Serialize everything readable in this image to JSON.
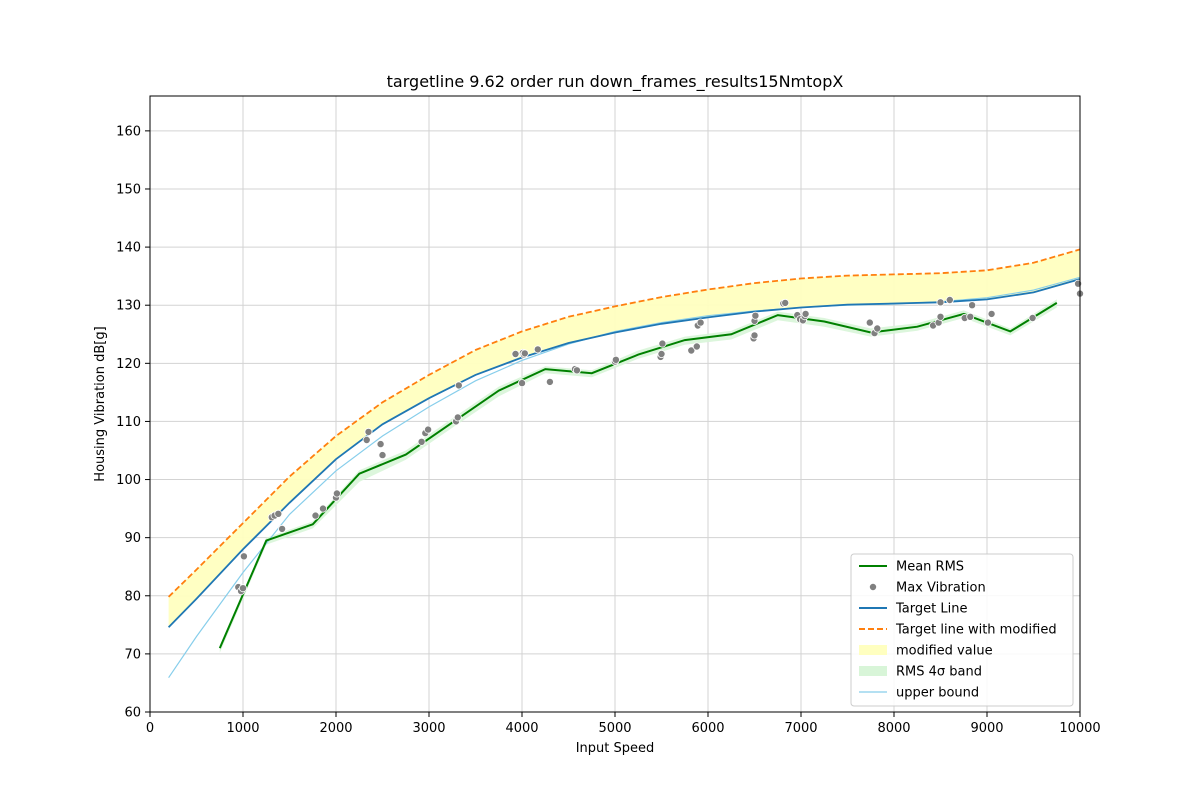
{
  "chart_data": {
    "type": "line",
    "title": "targetline 9.62 order run down_frames_results15NmtopX",
    "xlabel": "Input Speed",
    "ylabel": "Housing Vibration dB[g]",
    "xlim": [
      0,
      10000
    ],
    "ylim": [
      60,
      166
    ],
    "xticks": [
      0,
      1000,
      2000,
      3000,
      4000,
      5000,
      6000,
      7000,
      8000,
      9000,
      10000
    ],
    "yticks": [
      60,
      70,
      80,
      90,
      100,
      110,
      120,
      130,
      140,
      150,
      160
    ],
    "grid": true,
    "legend_position": "lower right",
    "colors": {
      "mean_rms": "#008000",
      "max_vibration": "#808080",
      "target_line": "#1f77b4",
      "target_modified": "#ff7f0e",
      "modified_band": "#ffffc0",
      "rms_band": "#d8f5d8",
      "upper_bound": "#87ceeb"
    },
    "legend": [
      {
        "key": "mean_rms",
        "label": "Mean RMS",
        "style": "line"
      },
      {
        "key": "max_vibration",
        "label": "Max Vibration",
        "style": "marker"
      },
      {
        "key": "target_line",
        "label": "Target Line",
        "style": "line"
      },
      {
        "key": "target_modified",
        "label": "Target line with modified",
        "style": "dashed"
      },
      {
        "key": "modified_band",
        "label": "modified value",
        "style": "patch"
      },
      {
        "key": "rms_band",
        "label": "RMS 4σ band",
        "style": "patch"
      },
      {
        "key": "upper_bound",
        "label": "upper bound",
        "style": "thin"
      }
    ],
    "series": [
      {
        "key": "target_line",
        "x": [
          200,
          500,
          1000,
          1500,
          2000,
          2500,
          3000,
          3500,
          4000,
          4500,
          5000,
          5500,
          6000,
          6500,
          7000,
          7500,
          8000,
          8500,
          9000,
          9500,
          10000
        ],
        "y": [
          74.6,
          79.5,
          88.0,
          96.0,
          103.5,
          109.5,
          114.0,
          118.0,
          121.0,
          123.5,
          125.3,
          126.8,
          127.9,
          128.9,
          129.6,
          130.1,
          130.3,
          130.5,
          131.0,
          132.2,
          134.5
        ]
      },
      {
        "key": "target_modified",
        "x": [
          200,
          500,
          1000,
          1500,
          2000,
          2500,
          3000,
          3500,
          4000,
          4500,
          5000,
          5500,
          6000,
          6500,
          7000,
          7500,
          8000,
          8500,
          9000,
          9500,
          10000
        ],
        "y": [
          79.8,
          84.5,
          92.5,
          100.5,
          107.5,
          113.3,
          118.0,
          122.3,
          125.5,
          128.0,
          129.8,
          131.4,
          132.7,
          133.8,
          134.6,
          135.1,
          135.3,
          135.5,
          136.0,
          137.3,
          139.6
        ]
      },
      {
        "key": "upper_bound",
        "x": [
          200,
          500,
          1000,
          1500,
          2000,
          2500,
          3000,
          3500,
          4000,
          4500,
          5000,
          5500,
          6000,
          6500,
          7000,
          7500,
          8000,
          8500,
          9000,
          9500,
          10000
        ],
        "y": [
          65.9,
          73.0,
          84.0,
          94.0,
          101.5,
          107.5,
          112.5,
          117.0,
          120.5,
          123.3,
          125.5,
          127.0,
          128.2,
          129.0,
          129.6,
          130.0,
          130.2,
          130.6,
          131.3,
          132.6,
          134.8
        ]
      },
      {
        "key": "mean_rms",
        "x": [
          750,
          1250,
          1750,
          2250,
          2750,
          3250,
          3750,
          4250,
          4750,
          5250,
          5750,
          6250,
          6750,
          7250,
          7750,
          8250,
          8750,
          9250,
          9750
        ],
        "y": [
          71.0,
          89.5,
          92.3,
          101.0,
          104.3,
          109.8,
          115.3,
          119.0,
          118.3,
          121.5,
          124.0,
          125.0,
          128.3,
          127.2,
          125.3,
          126.3,
          128.5,
          125.5,
          130.4
        ]
      },
      {
        "key": "rms_band",
        "x": [
          750,
          1250,
          1750,
          2250,
          2750,
          3250,
          3750,
          4250,
          4750,
          5250,
          5750,
          6250,
          6750,
          7250,
          7750,
          8250,
          8750,
          9250,
          9750
        ],
        "upper": [
          71.5,
          90.0,
          92.8,
          101.6,
          105.0,
          110.5,
          116.0,
          119.5,
          118.8,
          122.2,
          124.6,
          125.6,
          128.9,
          127.8,
          126.0,
          126.9,
          129.1,
          126.0,
          131.0
        ],
        "lower": [
          70.2,
          88.8,
          91.6,
          99.6,
          103.4,
          108.9,
          114.3,
          118.3,
          117.6,
          120.8,
          123.2,
          124.1,
          127.4,
          126.3,
          124.6,
          125.6,
          127.8,
          124.8,
          129.6
        ]
      },
      {
        "key": "max_vibration",
        "x": [
          950,
          980,
          1000,
          1010,
          1310,
          1340,
          1380,
          1420,
          1780,
          1860,
          2000,
          2010,
          2330,
          2350,
          2480,
          2500,
          2920,
          2960,
          2990,
          3290,
          3310,
          3320,
          3930,
          4000,
          4010,
          4020,
          4030,
          4170,
          4300,
          4570,
          4590,
          5000,
          5010,
          5490,
          5500,
          5510,
          5820,
          5880,
          5890,
          5920,
          6490,
          6500,
          6500,
          6510,
          6810,
          6830,
          6960,
          6990,
          7020,
          7040,
          7050,
          7740,
          7790,
          7820,
          8420,
          8480,
          8500,
          8500,
          8600,
          8760,
          8820,
          8840,
          9010,
          9050,
          9490,
          9980,
          10000
        ],
        "y": [
          81.5,
          80.8,
          81.3,
          86.8,
          93.5,
          93.8,
          94.1,
          91.5,
          93.8,
          95.0,
          96.9,
          97.6,
          106.8,
          108.2,
          106.1,
          104.2,
          106.5,
          108.0,
          108.6,
          110.0,
          110.7,
          116.2,
          121.6,
          116.6,
          121.8,
          121.5,
          121.7,
          122.4,
          116.8,
          119.0,
          118.8,
          120.3,
          120.6,
          121.1,
          121.6,
          123.4,
          122.2,
          122.9,
          126.5,
          127.0,
          124.3,
          124.8,
          127.3,
          128.2,
          130.3,
          130.4,
          128.3,
          127.6,
          127.4,
          128.1,
          128.5,
          127.0,
          125.2,
          126.0,
          126.5,
          127.0,
          128.0,
          130.5,
          130.9,
          127.8,
          128.0,
          130.0,
          127.0,
          128.5,
          127.8,
          133.7,
          132.0
        ]
      }
    ]
  }
}
